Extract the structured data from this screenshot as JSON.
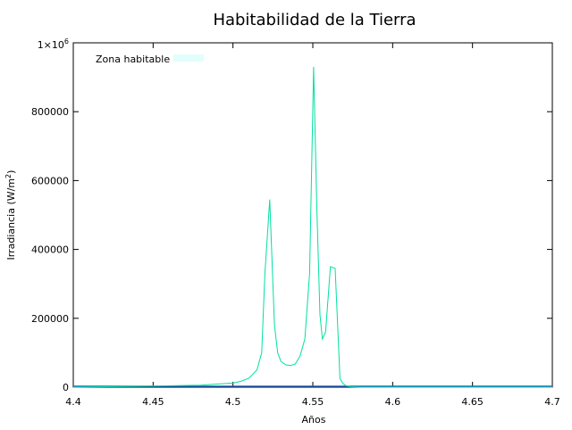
{
  "chart_data": {
    "type": "line",
    "title": "Habitabilidad de la Tierra",
    "xlabel": "Años",
    "ylabel_main": "Irradiancia (W/m",
    "ylabel_sup": "2",
    "ylabel_tail": ")",
    "xlim": [
      4.4,
      4.7
    ],
    "ylim": [
      0,
      1000000
    ],
    "grid": false,
    "legend_position": "top-left",
    "x_ticks": [
      {
        "value": 4.4,
        "label": "4.4"
      },
      {
        "value": 4.45,
        "label": "4.45"
      },
      {
        "value": 4.5,
        "label": "4.5"
      },
      {
        "value": 4.55,
        "label": "4.55"
      },
      {
        "value": 4.6,
        "label": "4.6"
      },
      {
        "value": 4.65,
        "label": "4.65"
      },
      {
        "value": 4.7,
        "label": "4.7"
      }
    ],
    "y_ticks": [
      {
        "value": 0,
        "label": "0"
      },
      {
        "value": 200000,
        "label": "200000"
      },
      {
        "value": 400000,
        "label": "400000"
      },
      {
        "value": 600000,
        "label": "600000"
      },
      {
        "value": 800000,
        "label": "800000"
      }
    ],
    "y_top_tick": {
      "value": 1000000,
      "base": "1×10",
      "exp": "6"
    },
    "series": [
      {
        "name": "Zona habitable",
        "color": "#00e0a0",
        "legend_color": "#e0fffc",
        "x": [
          4.4,
          4.45,
          4.48,
          4.49,
          4.5,
          4.505,
          4.51,
          4.515,
          4.518,
          4.52,
          4.523,
          4.526,
          4.528,
          4.53,
          4.533,
          4.536,
          4.539,
          4.542,
          4.545,
          4.548,
          4.5505,
          4.5525,
          4.5545,
          4.556,
          4.558,
          4.561,
          4.564,
          4.567,
          4.569,
          4.571,
          4.574,
          4.58,
          4.6,
          4.65,
          4.7
        ],
        "y": [
          0,
          3000,
          6000,
          9000,
          12000,
          17000,
          26000,
          50000,
          100000,
          330000,
          545000,
          180000,
          100000,
          75000,
          65000,
          63000,
          67000,
          90000,
          140000,
          330000,
          930000,
          520000,
          210000,
          140000,
          160000,
          350000,
          345000,
          25000,
          10000,
          4000,
          1000,
          0,
          0,
          0,
          0
        ]
      }
    ]
  }
}
